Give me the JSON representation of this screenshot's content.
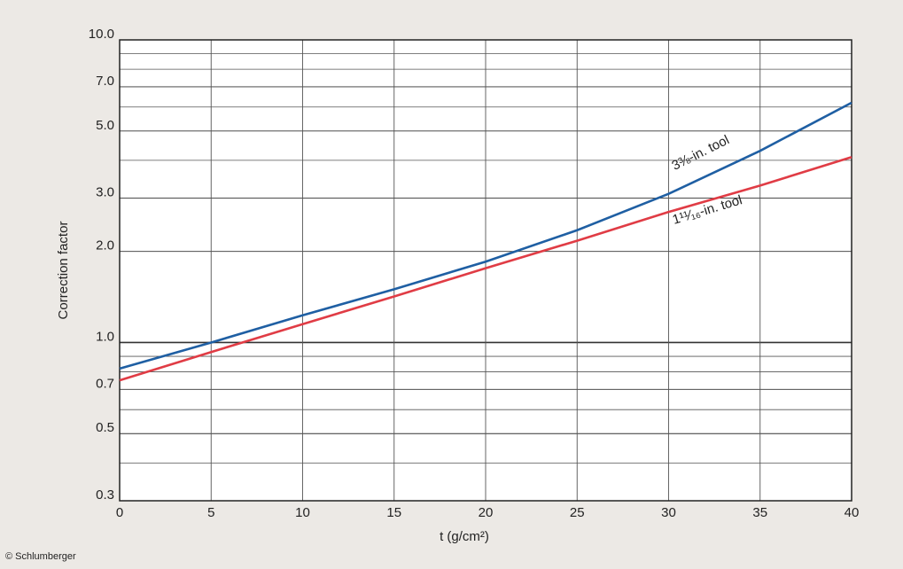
{
  "chart_data": {
    "type": "line",
    "x_label": "t (g/cm²)",
    "y_label": "Correction factor",
    "x": [
      0,
      5,
      10,
      15,
      20,
      25,
      30,
      35,
      40
    ],
    "series": [
      {
        "name": "3⅜-in. tool",
        "color": "#1f5fa3",
        "values": [
          0.82,
          1.0,
          1.23,
          1.5,
          1.85,
          2.35,
          3.1,
          4.3,
          6.2
        ]
      },
      {
        "name": "1¹¹⁄₁₆-in. tool",
        "color": "#e03c45",
        "values": [
          0.75,
          0.93,
          1.15,
          1.42,
          1.76,
          2.17,
          2.7,
          3.3,
          4.1
        ]
      }
    ],
    "xlim": [
      0,
      40
    ],
    "xticks": [
      0,
      5,
      10,
      15,
      20,
      25,
      30,
      35,
      40
    ],
    "ylim": [
      0.3,
      10
    ],
    "log_y": true,
    "yticks": [
      {
        "value": 10,
        "label": "10.0"
      },
      {
        "value": 7,
        "label": "7.0"
      },
      {
        "value": 5,
        "label": "5.0"
      },
      {
        "value": 3,
        "label": "3.0"
      },
      {
        "value": 2,
        "label": "2.0"
      },
      {
        "value": 1,
        "label": "1.0"
      },
      0.7,
      0.5,
      0.3
    ],
    "y_minor_grid": [
      9,
      8,
      6,
      4,
      0.9,
      0.8,
      0.6,
      0.4
    ],
    "grid": true,
    "credit": "© Schlumberger"
  }
}
